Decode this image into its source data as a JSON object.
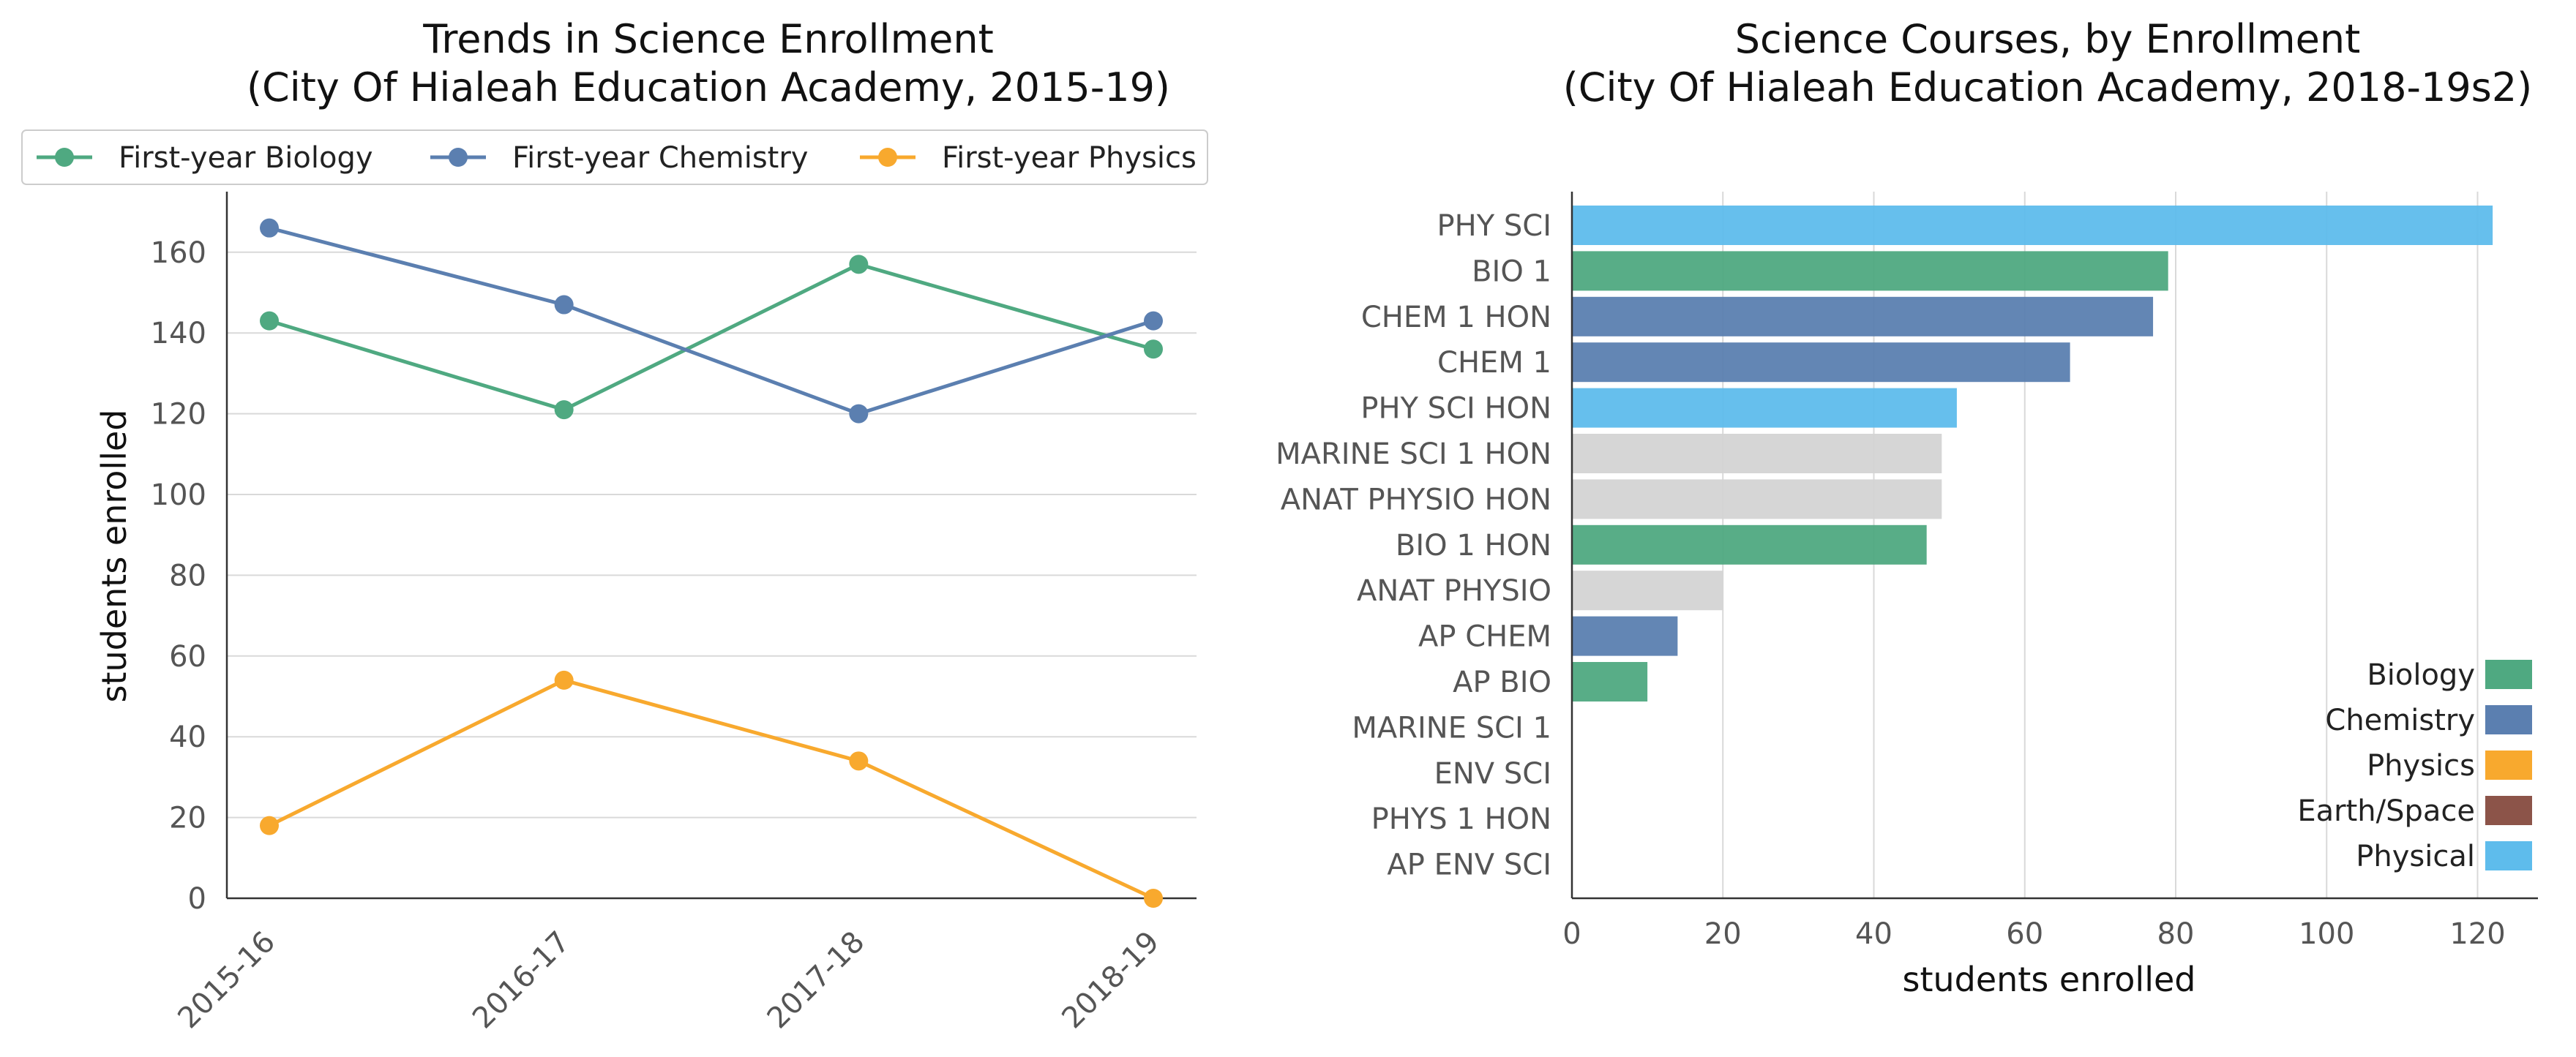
{
  "chart_data": [
    {
      "type": "line",
      "title": "Trends in Science Enrollment",
      "subtitle": "(City Of Hialeah Education Academy, 2015-19)",
      "xlabel": "",
      "ylabel": "students enrolled",
      "categories": [
        "2015-16",
        "2016-17",
        "2017-18",
        "2018-19"
      ],
      "series": [
        {
          "name": "First-year Biology",
          "color": "#4fa981",
          "values": [
            143,
            121,
            157,
            136
          ]
        },
        {
          "name": "First-year Chemistry",
          "color": "#5b7fb0",
          "values": [
            166,
            147,
            120,
            143
          ]
        },
        {
          "name": "First-year Physics",
          "color": "#f8a92e",
          "values": [
            18,
            54,
            34,
            0
          ]
        }
      ],
      "ylim": [
        0,
        175
      ],
      "yticks": [
        0,
        20,
        40,
        60,
        80,
        100,
        120,
        140,
        160
      ],
      "grid": "horizontal",
      "legend": "top"
    },
    {
      "type": "bar",
      "orientation": "horizontal",
      "title": "Science Courses, by Enrollment",
      "subtitle": "(City Of Hialeah Education Academy, 2018-19s2)",
      "xlabel": "students enrolled",
      "ylabel": "",
      "categories": [
        "PHY SCI",
        "BIO 1",
        "CHEM 1 HON",
        "CHEM 1",
        "PHY SCI HON",
        "MARINE SCI 1 HON",
        "ANAT PHYSIO HON",
        "BIO 1 HON",
        "ANAT PHYSIO",
        "AP CHEM",
        "AP BIO",
        "MARINE SCI 1",
        "ENV SCI",
        "PHYS 1 HON",
        "AP ENV SCI"
      ],
      "values": [
        122,
        79,
        77,
        66,
        51,
        49,
        49,
        47,
        20,
        14,
        10,
        0,
        0,
        0,
        0
      ],
      "bar_groups": [
        "Physical",
        "Biology",
        "Chemistry",
        "Chemistry",
        "Physical",
        "Other",
        "Other",
        "Biology",
        "Other",
        "Chemistry",
        "Biology",
        "Other",
        "Other",
        "Other",
        "Other"
      ],
      "xlim": [
        0,
        128
      ],
      "xticks": [
        0,
        20,
        40,
        60,
        80,
        100,
        120
      ],
      "grid": "vertical",
      "legend": "bottom-right",
      "legend_entries": [
        {
          "name": "Biology",
          "color": "#4fa981"
        },
        {
          "name": "Chemistry",
          "color": "#5b7fb0"
        },
        {
          "name": "Physics",
          "color": "#f8a92e"
        },
        {
          "name": "Earth/Space",
          "color": "#8c5449"
        },
        {
          "name": "Physical",
          "color": "#5ebcec"
        }
      ],
      "other_color": "#d4d4d4"
    }
  ]
}
